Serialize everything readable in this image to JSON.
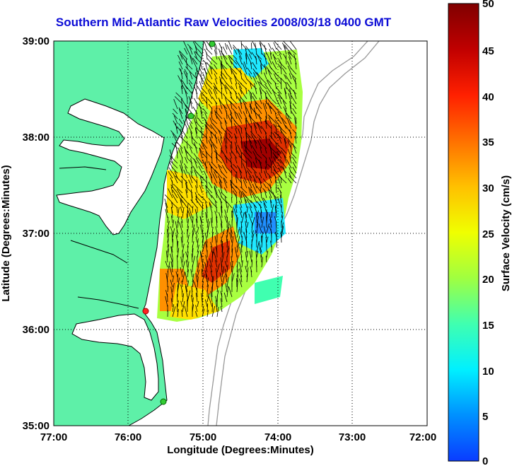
{
  "title": "Southern Mid-Atlantic Raw Velocities 2008/03/18 0400 GMT",
  "axes": {
    "xlabel": "Longitude (Degrees:Minutes)",
    "ylabel": "Latitude (Degrees:Minutes)",
    "x_ticks": [
      "77:00",
      "76:00",
      "75:00",
      "74:00",
      "73:00",
      "72:00"
    ],
    "y_ticks": [
      "39:00",
      "38:00",
      "37:00",
      "36:00",
      "35:00"
    ]
  },
  "colorbar": {
    "label": "Surface Velocity (cm/s)",
    "ticks": [
      "50",
      "45",
      "40",
      "35",
      "30",
      "25",
      "20",
      "15",
      "10",
      "5",
      "0"
    ],
    "min": 0,
    "max": 50
  },
  "colors": {
    "land": "#5ef0a8",
    "title": "#0b0bd6",
    "station_active": "#33cc33",
    "station_alert": "#ff2222",
    "bathymetry": "#999999",
    "arrows": "#000000"
  },
  "stations": [
    {
      "id": "station-north",
      "state": "active"
    },
    {
      "id": "station-delaware",
      "state": "active"
    },
    {
      "id": "station-virginia-beach",
      "state": "alert"
    },
    {
      "id": "station-hatteras",
      "state": "active"
    }
  ]
}
